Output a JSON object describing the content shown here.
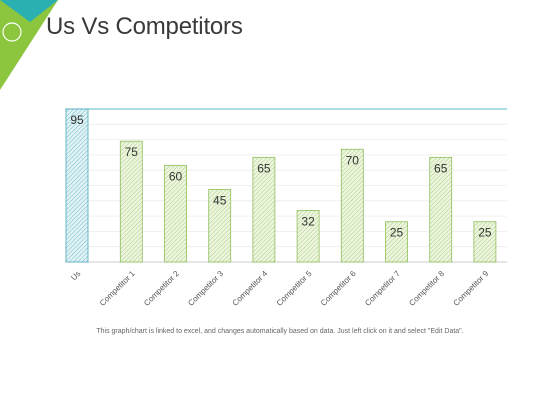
{
  "header": {
    "title": "Us Vs Competitors"
  },
  "footnote": "This graph/chart is linked to excel, and changes automatically based on data. Just left click on it and select \"Edit Data\".",
  "colors": {
    "accent_green": "#8cc63f",
    "accent_teal": "#2ab0b0",
    "us_fill": "#5bb8c8",
    "competitor_fill": "#b5d38a",
    "competitor_stroke": "#8fbf5a",
    "us_stroke": "#4aa8b8"
  },
  "chart_data": {
    "type": "bar",
    "title": "",
    "xlabel": "",
    "ylabel": "",
    "categories": [
      "Us",
      "Competitor 1",
      "Competitor 2",
      "Competitor 3",
      "Competitor 4",
      "Competitor 5",
      "Competitor 6",
      "Competitor 7",
      "Competitor 8",
      "Competitor 9"
    ],
    "values": [
      95,
      75,
      60,
      45,
      65,
      32,
      70,
      25,
      65,
      25
    ],
    "ylim": [
      0,
      95
    ],
    "grid": true,
    "legend": "none",
    "data_labels": true
  }
}
